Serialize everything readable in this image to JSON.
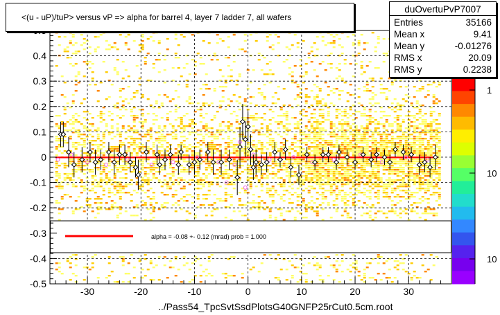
{
  "chart_data": {
    "type": "scatter",
    "title": "<(u - uP)/tuP> versus   vP => alpha for barrel 4, layer 7 ladder 7, all wafers",
    "xlabel": "",
    "ylabel": "",
    "xlim": [
      -37,
      38
    ],
    "ylim": [
      -0.5,
      0.5
    ],
    "x_ticks": [
      -30,
      -20,
      -10,
      0,
      10,
      20,
      30
    ],
    "y_ticks": [
      -0.5,
      -0.4,
      -0.3,
      -0.2,
      -0.1,
      0,
      0.1,
      0.2,
      0.3,
      0.4,
      0.5
    ],
    "x_tick_labels": [
      "-30",
      "-20",
      "-10",
      "0",
      "10",
      "20",
      "30"
    ],
    "y_tick_labels": [
      "-0.5",
      "-0.4",
      "-0.3",
      "-0.2",
      "-0.1",
      "0",
      "0.1",
      "0.2",
      "0.3",
      "0.4",
      "0.5"
    ],
    "grid": true,
    "legend_placement": "bottom-band",
    "fit_line": {
      "y": -0.001,
      "x_range": [
        -36,
        35.5
      ],
      "color": "#ff0000"
    },
    "colorbar_labels": [
      "1",
      "10",
      "10"
    ],
    "profile_points": {
      "x": [
        -35,
        -34.5,
        -33.5,
        -32.5,
        -31,
        -29.5,
        -28.5,
        -27.5,
        -26,
        -25,
        -24,
        -23,
        -22,
        -21,
        -20.5,
        -19,
        -17,
        -16.5,
        -15.5,
        -14.5,
        -13,
        -12.5,
        -11,
        -10,
        -9,
        -7.5,
        -6.5,
        -5,
        -3.5,
        -2,
        -1.5,
        -1,
        -0.5,
        0,
        0.5,
        1,
        1.5,
        2.5,
        3.5,
        5,
        6,
        7,
        8,
        9.5,
        11,
        12.5,
        14,
        15,
        16.5,
        17,
        18.5,
        20,
        21.5,
        23,
        24,
        25.5,
        26.5,
        27.5,
        29,
        30.5,
        32,
        33,
        34,
        35
      ],
      "y": [
        0.09,
        0.09,
        0.02,
        -0.03,
        -0.01,
        0.02,
        -0.02,
        -0.01,
        0.02,
        -0.02,
        0.01,
        0.01,
        -0.02,
        -0.04,
        -0.07,
        0.02,
        0.01,
        -0.03,
        -0.01,
        0.01,
        -0.03,
        0.02,
        -0.03,
        -0.02,
        -0.01,
        0.02,
        -0.02,
        -0.02,
        -0.01,
        -0.08,
        0.04,
        0.14,
        0.07,
        0.12,
        0.03,
        -0.04,
        -0.02,
        -0.03,
        -0.02,
        0.02,
        -0.01,
        0.03,
        -0.04,
        -0.07,
        0.01,
        -0.02,
        0.01,
        0.01,
        -0.02,
        0.02,
        0.0,
        -0.02,
        0.01,
        -0.01,
        0.01,
        0.0,
        -0.02,
        0.03,
        0.02,
        0.01,
        -0.03,
        -0.02,
        -0.04,
        0.0
      ],
      "err": [
        0.05,
        0.05,
        0.06,
        0.05,
        0.05,
        0.04,
        0.05,
        0.04,
        0.04,
        0.05,
        0.04,
        0.04,
        0.04,
        0.04,
        0.06,
        0.04,
        0.04,
        0.04,
        0.04,
        0.04,
        0.04,
        0.03,
        0.04,
        0.05,
        0.04,
        0.04,
        0.05,
        0.05,
        0.04,
        0.07,
        0.08,
        0.07,
        0.07,
        0.06,
        0.06,
        0.05,
        0.05,
        0.04,
        0.04,
        0.04,
        0.03,
        0.04,
        0.04,
        0.04,
        0.03,
        0.03,
        0.03,
        0.03,
        0.03,
        0.03,
        0.03,
        0.03,
        0.03,
        0.03,
        0.03,
        0.03,
        0.03,
        0.03,
        0.03,
        0.03,
        0.04,
        0.04,
        0.04,
        0.05
      ]
    },
    "secondary_points": {
      "x": [
        -35.5,
        -33,
        -30,
        -26.5,
        -22.5,
        -18,
        -14,
        -9.5,
        -5.5,
        -4,
        -2.5,
        -1.5,
        -0.5,
        1,
        4,
        8.5,
        12,
        16,
        21,
        25,
        29.5,
        33.5
      ],
      "y": [
        -0.01,
        0.01,
        -0.02,
        -0.03,
        -0.01,
        -0.03,
        -0.02,
        0.0,
        -0.02,
        -0.1,
        -0.03,
        0.06,
        -0.12,
        0.01,
        -0.01,
        0.0,
        -0.02,
        -0.01,
        0.01,
        -0.02,
        0.0,
        -0.01
      ]
    }
  },
  "legend": {
    "text": "alpha =    -0.08 +-  0.12 (mrad) prob = 1.000"
  },
  "stats": {
    "name": "duOvertuPvP7007",
    "rows": [
      {
        "label": "Entries",
        "value": "35166"
      },
      {
        "label": "Mean x",
        "value": "9.41"
      },
      {
        "label": "Mean y",
        "value": "-0.01276"
      },
      {
        "label": "RMS x",
        "value": "20.09"
      },
      {
        "label": "RMS y",
        "value": "0.2238"
      }
    ]
  },
  "footer": {
    "file": "../Pass54_TpcSvtSsdPlotsG40GNFP25rCut0.5cm.root"
  },
  "colors": {
    "fit": "#ff0000",
    "profile_marker": "#000000",
    "secondary_marker": "#ee66ee",
    "density_low": "#ffff66",
    "density_mid": "#ffcc00",
    "density_high": "#ff8800"
  }
}
